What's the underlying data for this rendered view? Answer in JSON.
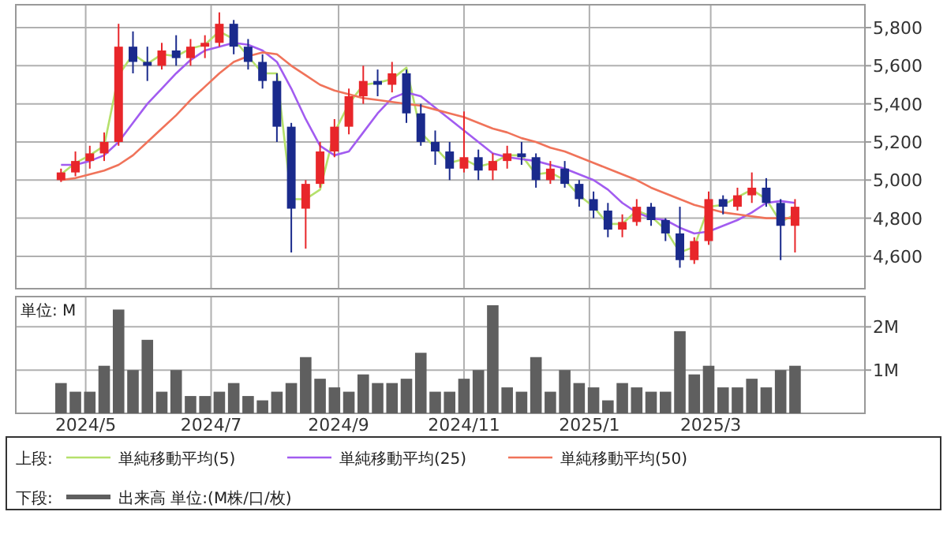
{
  "chart_data": [
    {
      "type": "candlestick",
      "tick_labels": "y",
      "grid": true,
      "legend": "bottom",
      "annotations": [
        "上段:"
      ],
      "xlim": [
        "2024-03-28",
        "2025-05-15"
      ],
      "xticks": [
        {
          "value": "2024-05",
          "label": null
        },
        {
          "value": "2024-07",
          "label": null
        },
        {
          "value": "2024-09",
          "label": null
        },
        {
          "value": "2024-11",
          "label": null
        },
        {
          "value": "2025-01",
          "label": null
        },
        {
          "value": "2025-03",
          "label": null
        }
      ],
      "ylim": [
        4430,
        5920
      ],
      "yticks": [
        {
          "value": 4600,
          "label": "4,600"
        },
        {
          "value": 4800,
          "label": "4,800"
        },
        {
          "value": 5000,
          "label": "5,000"
        },
        {
          "value": 5200,
          "label": "5,200"
        },
        {
          "value": 5400,
          "label": "5,400"
        },
        {
          "value": 5600,
          "label": "5,600"
        },
        {
          "value": 5800,
          "label": "5,800"
        }
      ],
      "x": [
        "2024-04-19",
        "2024-04-26",
        "2024-05-03",
        "2024-05-10",
        "2024-05-17",
        "2024-05-24",
        "2024-05-31",
        "2024-06-07",
        "2024-06-14",
        "2024-06-21",
        "2024-06-28",
        "2024-07-05",
        "2024-07-12",
        "2024-07-19",
        "2024-07-26",
        "2024-08-02",
        "2024-08-09",
        "2024-08-16",
        "2024-08-23",
        "2024-08-30",
        "2024-09-06",
        "2024-09-13",
        "2024-09-20",
        "2024-09-27",
        "2024-10-04",
        "2024-10-11",
        "2024-10-18",
        "2024-10-25",
        "2024-11-01",
        "2024-11-08",
        "2024-11-15",
        "2024-11-22",
        "2024-11-29",
        "2024-12-06",
        "2024-12-13",
        "2024-12-20",
        "2024-12-27",
        "2025-01-03",
        "2025-01-10",
        "2025-01-17",
        "2025-01-24",
        "2025-01-31",
        "2025-02-07",
        "2025-02-14",
        "2025-02-21",
        "2025-02-28",
        "2025-03-07",
        "2025-03-14",
        "2025-03-21",
        "2025-03-28",
        "2025-04-04",
        "2025-04-11"
      ],
      "ohlc": [
        [
          5000,
          5060,
          4990,
          5040
        ],
        [
          5040,
          5150,
          5020,
          5100
        ],
        [
          5100,
          5180,
          5060,
          5140
        ],
        [
          5140,
          5250,
          5100,
          5200
        ],
        [
          5200,
          5820,
          5180,
          5700
        ],
        [
          5700,
          5780,
          5560,
          5620
        ],
        [
          5620,
          5700,
          5520,
          5600
        ],
        [
          5600,
          5720,
          5580,
          5680
        ],
        [
          5680,
          5760,
          5600,
          5640
        ],
        [
          5640,
          5740,
          5600,
          5700
        ],
        [
          5700,
          5760,
          5640,
          5720
        ],
        [
          5720,
          5880,
          5700,
          5820
        ],
        [
          5820,
          5840,
          5660,
          5700
        ],
        [
          5700,
          5740,
          5580,
          5620
        ],
        [
          5620,
          5660,
          5480,
          5520
        ],
        [
          5520,
          5560,
          5200,
          5280
        ],
        [
          5280,
          5300,
          4620,
          4850
        ],
        [
          4850,
          5000,
          4640,
          4980
        ],
        [
          4980,
          5200,
          4960,
          5150
        ],
        [
          5150,
          5320,
          5120,
          5280
        ],
        [
          5280,
          5480,
          5240,
          5440
        ],
        [
          5440,
          5600,
          5400,
          5520
        ],
        [
          5520,
          5580,
          5440,
          5500
        ],
        [
          5500,
          5620,
          5460,
          5560
        ],
        [
          5560,
          5580,
          5300,
          5350
        ],
        [
          5350,
          5400,
          5180,
          5200
        ],
        [
          5200,
          5260,
          5080,
          5150
        ],
        [
          5150,
          5200,
          5000,
          5060
        ],
        [
          5060,
          5360,
          5040,
          5120
        ],
        [
          5120,
          5160,
          5000,
          5050
        ],
        [
          5050,
          5140,
          5000,
          5100
        ],
        [
          5100,
          5180,
          5060,
          5140
        ],
        [
          5140,
          5200,
          5080,
          5120
        ],
        [
          5120,
          5140,
          4960,
          5000
        ],
        [
          5000,
          5100,
          4980,
          5060
        ],
        [
          5060,
          5100,
          4960,
          4980
        ],
        [
          4980,
          5000,
          4860,
          4900
        ],
        [
          4900,
          4940,
          4800,
          4840
        ],
        [
          4840,
          4880,
          4700,
          4740
        ],
        [
          4740,
          4820,
          4700,
          4780
        ],
        [
          4780,
          4900,
          4760,
          4860
        ],
        [
          4860,
          4880,
          4760,
          4790
        ],
        [
          4790,
          4800,
          4680,
          4720
        ],
        [
          4720,
          4860,
          4540,
          4580
        ],
        [
          4580,
          4700,
          4560,
          4680
        ],
        [
          4680,
          4940,
          4660,
          4900
        ],
        [
          4900,
          4920,
          4820,
          4860
        ],
        [
          4860,
          4960,
          4840,
          4920
        ],
        [
          4920,
          5040,
          4880,
          4960
        ],
        [
          4960,
          5010,
          4860,
          4880
        ],
        [
          4880,
          4900,
          4580,
          4760
        ],
        [
          4760,
          4900,
          4620,
          4860
        ]
      ],
      "series": [
        {
          "type": "line",
          "name": "単純移動平均(5)",
          "color": "#b5e06b",
          "values": [
            5030,
            5090,
            5130,
            5180,
            5550,
            5660,
            5610,
            5660,
            5650,
            5690,
            5710,
            5780,
            5740,
            5650,
            5560,
            5560,
            4900,
            4900,
            4950,
            5250,
            5400,
            5500,
            5510,
            5530,
            5590,
            5250,
            5170,
            5090,
            5110,
            5070,
            5090,
            5130,
            5130,
            5030,
            5040,
            5000,
            4920,
            4860,
            4770,
            4770,
            4840,
            4810,
            4740,
            4620,
            4650,
            4860,
            4870,
            4910,
            4950,
            4900,
            4780,
            4820
          ]
        },
        {
          "type": "line",
          "name": "単純移動平均(25)",
          "color": "#a25cf0",
          "values": [
            5080,
            5080,
            5100,
            5130,
            5200,
            5300,
            5400,
            5480,
            5560,
            5630,
            5680,
            5700,
            5720,
            5710,
            5680,
            5620,
            5480,
            5320,
            5180,
            5130,
            5150,
            5250,
            5350,
            5430,
            5460,
            5440,
            5380,
            5320,
            5260,
            5200,
            5140,
            5120,
            5110,
            5100,
            5080,
            5060,
            5030,
            5000,
            4950,
            4880,
            4830,
            4800,
            4790,
            4750,
            4720,
            4730,
            4760,
            4790,
            4830,
            4880,
            4890,
            4880
          ]
        },
        {
          "type": "line",
          "name": "単純移動平均(50)",
          "color": "#f0735a",
          "values": [
            5000,
            5010,
            5030,
            5050,
            5080,
            5130,
            5200,
            5270,
            5340,
            5420,
            5490,
            5560,
            5620,
            5650,
            5670,
            5660,
            5600,
            5550,
            5500,
            5470,
            5450,
            5430,
            5420,
            5410,
            5400,
            5390,
            5370,
            5350,
            5330,
            5300,
            5270,
            5250,
            5220,
            5200,
            5170,
            5150,
            5120,
            5090,
            5060,
            5030,
            5000,
            4960,
            4930,
            4900,
            4870,
            4850,
            4830,
            4820,
            4810,
            4800,
            4800,
            4800
          ]
        }
      ]
    },
    {
      "type": "bar",
      "grid": true,
      "legend": "bottom",
      "ylabel": "単位: M",
      "annotations": [
        "下段:"
      ],
      "xlim": [
        "2024-03-28",
        "2025-05-15"
      ],
      "xticks": [
        {
          "value": "2024-05",
          "label": "2024/5"
        },
        {
          "value": "2024-07",
          "label": "2024/7"
        },
        {
          "value": "2024-09",
          "label": "2024/9"
        },
        {
          "value": "2024-11",
          "label": "2024/11"
        },
        {
          "value": "2025-01",
          "label": "2025/1"
        },
        {
          "value": "2025-03",
          "label": "2025/3"
        }
      ],
      "ylim": [
        0,
        2.7
      ],
      "yticks": [
        {
          "value": 1,
          "label": "1M"
        },
        {
          "value": 2,
          "label": "2M"
        }
      ],
      "x": [
        "2024-04-19",
        "2024-04-26",
        "2024-05-03",
        "2024-05-10",
        "2024-05-17",
        "2024-05-24",
        "2024-05-31",
        "2024-06-07",
        "2024-06-14",
        "2024-06-21",
        "2024-06-28",
        "2024-07-05",
        "2024-07-12",
        "2024-07-19",
        "2024-07-26",
        "2024-08-02",
        "2024-08-09",
        "2024-08-16",
        "2024-08-23",
        "2024-08-30",
        "2024-09-06",
        "2024-09-13",
        "2024-09-20",
        "2024-09-27",
        "2024-10-04",
        "2024-10-11",
        "2024-10-18",
        "2024-10-25",
        "2024-11-01",
        "2024-11-08",
        "2024-11-15",
        "2024-11-22",
        "2024-11-29",
        "2024-12-06",
        "2024-12-13",
        "2024-12-20",
        "2024-12-27",
        "2025-01-03",
        "2025-01-10",
        "2025-01-17",
        "2025-01-24",
        "2025-01-31",
        "2025-02-07",
        "2025-02-14",
        "2025-02-21",
        "2025-02-28",
        "2025-03-07",
        "2025-03-14",
        "2025-03-21",
        "2025-03-28",
        "2025-04-04",
        "2025-04-11"
      ],
      "series": [
        {
          "name": "出来高 単位:(M株/口/枚)",
          "color": "#5f5f5f",
          "values": [
            0.7,
            0.5,
            0.5,
            1.1,
            2.4,
            1.0,
            1.7,
            0.5,
            1.0,
            0.4,
            0.4,
            0.5,
            0.7,
            0.4,
            0.3,
            0.5,
            0.7,
            1.3,
            0.8,
            0.6,
            0.5,
            0.9,
            0.7,
            0.7,
            0.8,
            1.4,
            0.5,
            0.5,
            0.8,
            1.0,
            2.5,
            0.6,
            0.5,
            1.3,
            0.5,
            1.0,
            0.7,
            0.6,
            0.3,
            0.7,
            0.6,
            0.5,
            0.5,
            1.9,
            0.9,
            1.1,
            0.6,
            0.6,
            0.8,
            0.6,
            1.0,
            1.1
          ]
        }
      ]
    }
  ]
}
